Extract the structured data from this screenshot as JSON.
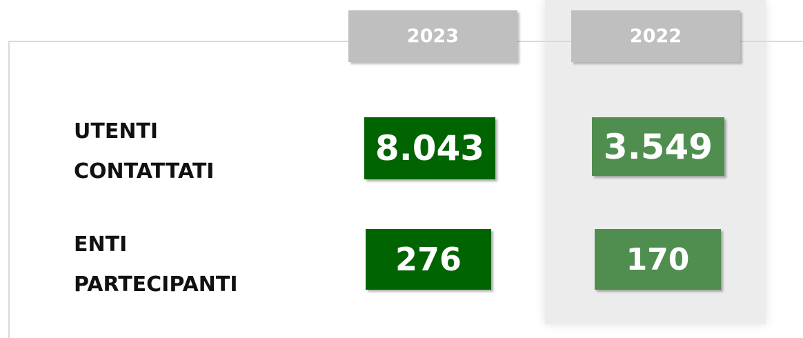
{
  "table": {
    "columns": [
      "2023",
      "2022"
    ],
    "rows": [
      {
        "label": "UTENTI CONTATTATI",
        "values": [
          "8.043",
          "3.549"
        ]
      },
      {
        "label": "ENTI PARTECIPANTI",
        "values": [
          "276",
          "170"
        ]
      }
    ]
  }
}
